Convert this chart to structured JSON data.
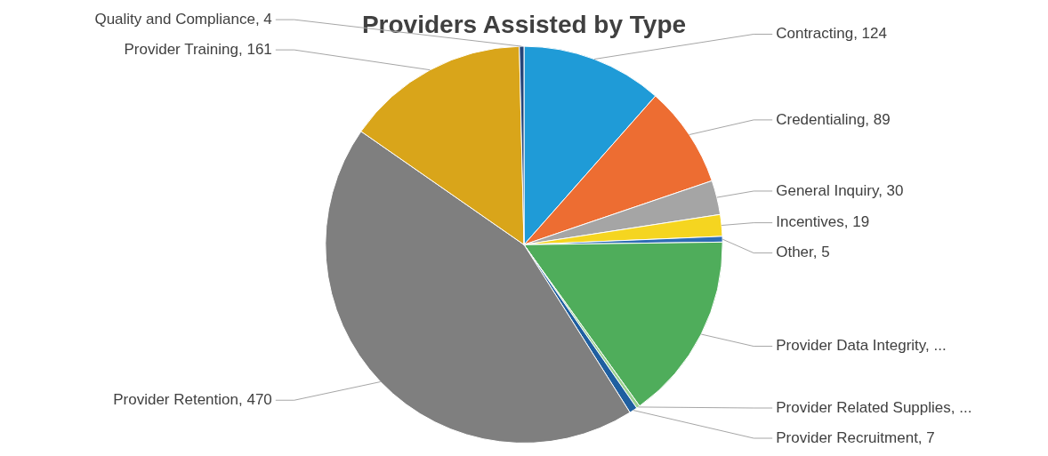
{
  "chart_data": {
    "type": "pie",
    "title": "Providers Assisted by Type",
    "categories": [
      "Contracting",
      "Credentialing",
      "General Inquiry",
      "Incentives",
      "Other",
      "Provider Data Integrity",
      "Provider Related Supplies",
      "Provider Recruitment",
      "Provider Retention",
      "Provider Training",
      "Quality and Compliance"
    ],
    "values": [
      124,
      89,
      30,
      19,
      5,
      165,
      3,
      7,
      470,
      161,
      4
    ],
    "value_labels": [
      "124",
      "89",
      "30",
      "19",
      "5",
      "...",
      "...",
      "7",
      "470",
      "161",
      "4"
    ],
    "colors": [
      "#1f9bd7",
      "#ed6d32",
      "#a5a5a5",
      "#f5d520",
      "#2e6db4",
      "#4fad5b",
      "#9bd18f",
      "#1f5fa0",
      "#7f7f7f",
      "#d9a51a",
      "#264478"
    ],
    "legend": false
  }
}
